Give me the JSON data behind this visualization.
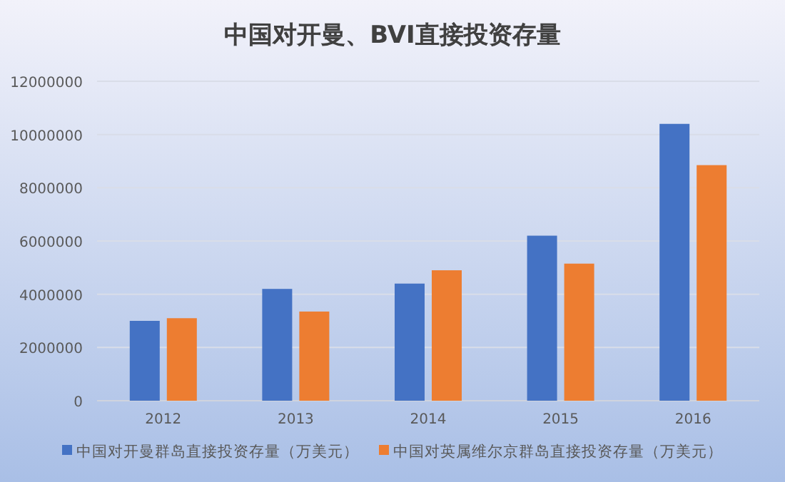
{
  "chart_data": {
    "type": "bar",
    "title": "中国对开曼、BVI直接投资存量",
    "categories": [
      "2012",
      "2013",
      "2014",
      "2015",
      "2016"
    ],
    "series": [
      {
        "name": "中国对开曼群岛直接投资存量（万美元）",
        "color": "#4472c4",
        "values": [
          3000000,
          4200000,
          4400000,
          6200000,
          10400000
        ]
      },
      {
        "name": "中国对英属维尔京群岛直接投资存量（万美元）",
        "color": "#ed7d31",
        "values": [
          3100000,
          3350000,
          4900000,
          5150000,
          8850000
        ]
      }
    ],
    "ylim": [
      0,
      12000000
    ],
    "yticks": [
      0,
      2000000,
      4000000,
      6000000,
      8000000,
      10000000,
      12000000
    ],
    "grid": "y",
    "legend": "bottom"
  }
}
